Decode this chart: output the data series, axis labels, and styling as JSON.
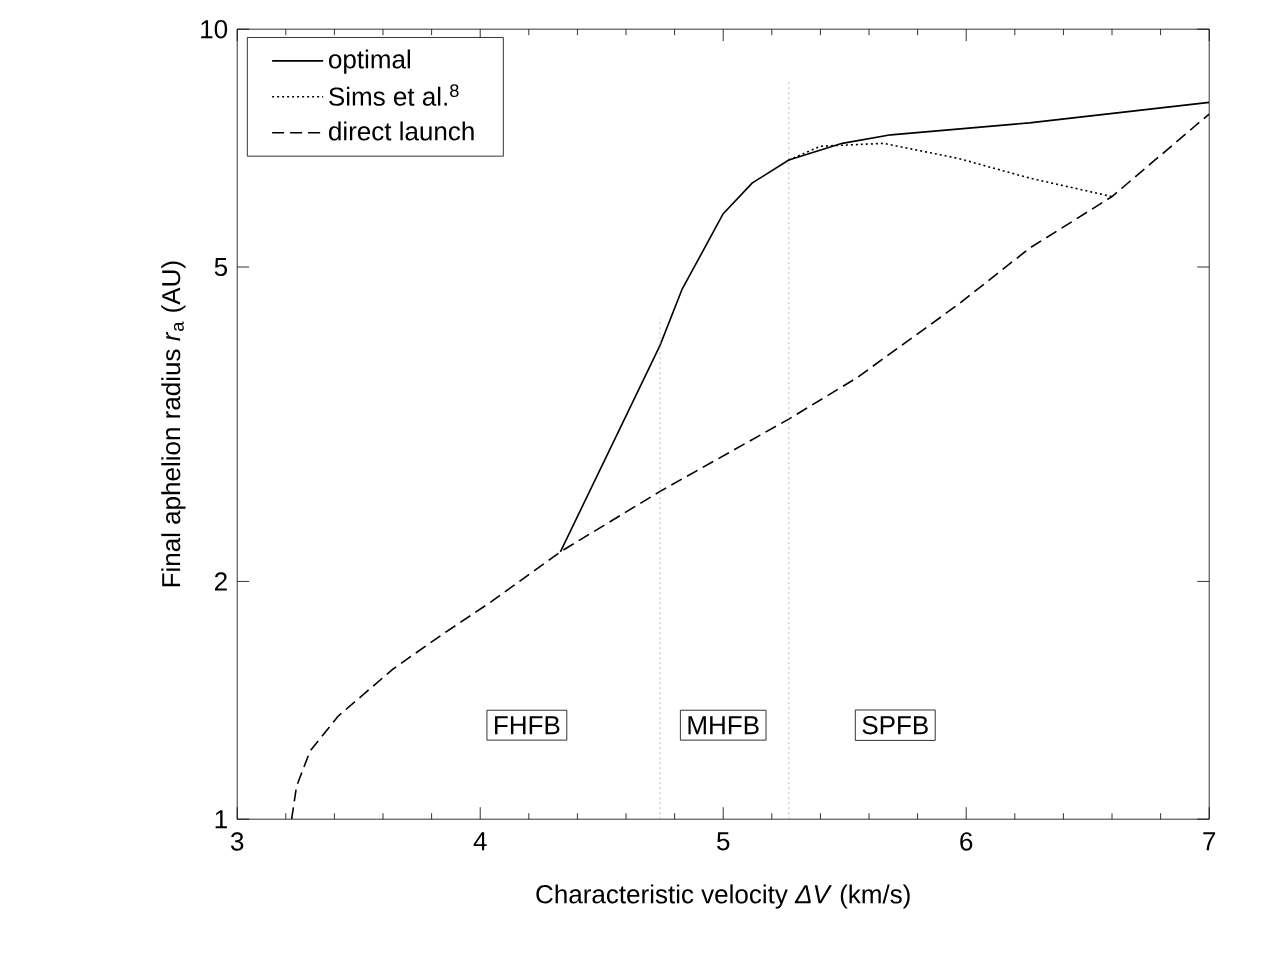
{
  "chart_data": {
    "type": "line",
    "xlabel": "Characteristic velocity  *ΔV*  (km/s)",
    "ylabel": "Final aphelion radius  *r*$_{a}$  (AU)",
    "log": "y",
    "xlim": [
      3,
      7
    ],
    "ylim": [
      1,
      10
    ],
    "xticks": [
      3,
      4,
      5,
      6,
      7
    ],
    "yticks": [
      1,
      2,
      5,
      10
    ],
    "legend": "top left",
    "grid": false,
    "marker": "none",
    "series": [
      {
        "name": "optimal",
        "color": "#000000",
        "line_style": "solid",
        "x": [
          4.33,
          4.55,
          4.74,
          4.83,
          5.0,
          5.12,
          5.27,
          5.49,
          5.69,
          6.26,
          7.0
        ],
        "values": [
          2.18,
          3.01,
          3.98,
          4.68,
          5.84,
          6.39,
          6.83,
          7.17,
          7.35,
          7.61,
          8.08
        ]
      },
      {
        "name": "Sims et al.$^{8}$",
        "color": "#000000",
        "line_style": "dotted",
        "x": [
          5.27,
          5.4,
          5.66,
          5.97,
          6.26,
          6.6
        ],
        "values": [
          6.83,
          7.11,
          7.17,
          6.86,
          6.48,
          6.14
        ]
      },
      {
        "name": "direct launch",
        "color": "#000000",
        "line_style": "dashed",
        "x": [
          3.224,
          3.244,
          3.3,
          3.415,
          3.642,
          3.84,
          4.04,
          4.33,
          4.74,
          5.27,
          5.55,
          5.97,
          6.26,
          6.6,
          7.0
        ],
        "values": [
          1.0,
          1.1,
          1.22,
          1.35,
          1.55,
          1.71,
          1.88,
          2.18,
          2.6,
          3.21,
          3.62,
          4.49,
          5.28,
          6.14,
          7.81
        ]
      },
      {
        "color": "#aaaaaa",
        "line_style": "dotted",
        "x": [
          4.74,
          4.74
        ],
        "values": [
          1.0,
          4.3
        ]
      },
      {
        "color": "#aaaaaa",
        "line_style": "dotted",
        "x": [
          5.27,
          5.27
        ],
        "values": [
          1.0,
          8.6
        ]
      }
    ],
    "annotations": [
      "FHFB",
      "MHFB",
      "SPFB"
    ]
  }
}
